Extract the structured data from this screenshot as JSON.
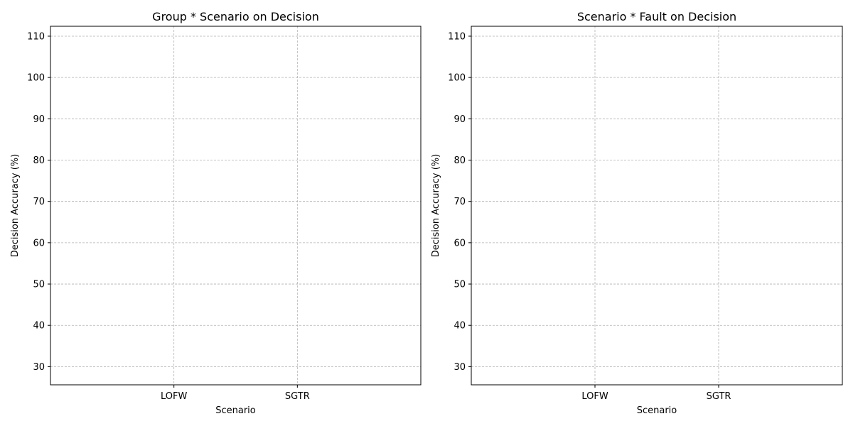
{
  "chart_data": [
    {
      "type": "line",
      "title": "Group * Scenario on Decision",
      "xlabel": "Scenario",
      "ylabel": "Decision Accuracy (%)",
      "categories": [
        "LOFW",
        "SGTR"
      ],
      "yticks": [
        30,
        40,
        50,
        60,
        70,
        80,
        90,
        100,
        110
      ],
      "ylim": [
        25.6,
        112.4
      ],
      "series": [],
      "grid": true
    },
    {
      "type": "line",
      "title": "Scenario * Fault on Decision",
      "xlabel": "Scenario",
      "ylabel": "Decision Accuracy (%)",
      "categories": [
        "LOFW",
        "SGTR"
      ],
      "yticks": [
        30,
        40,
        50,
        60,
        70,
        80,
        90,
        100,
        110
      ],
      "ylim": [
        25.6,
        112.4
      ],
      "series": [],
      "grid": true
    }
  ],
  "colors": {
    "grid": "#b0b0b0",
    "axis": "#000000",
    "background": "#ffffff"
  }
}
